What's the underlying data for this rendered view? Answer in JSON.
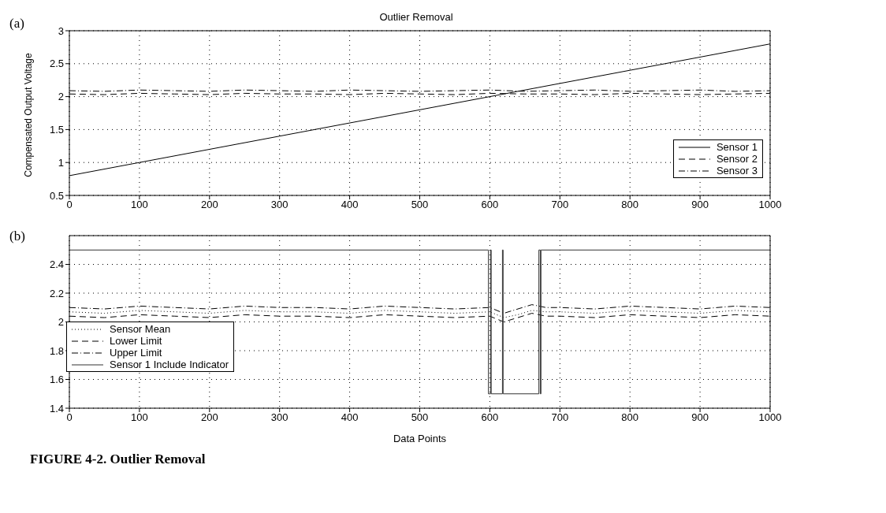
{
  "chart_data": [
    {
      "type": "line",
      "title": "Outlier Removal",
      "ylabel": "Compensated Output Voltage",
      "annotations": [
        "(a)"
      ],
      "xlim": [
        0,
        1000
      ],
      "xticks": [
        0,
        100,
        200,
        300,
        400,
        500,
        600,
        700,
        800,
        900,
        1000
      ],
      "ylim": [
        0.5,
        3
      ],
      "yticks": [
        0.5,
        1,
        1.5,
        2,
        2.5,
        3
      ],
      "grid": true,
      "legend": "bottom right",
      "series": [
        {
          "name": "Sensor 1",
          "color": "#000000",
          "line_style": "solid",
          "x": [
            0,
            1000
          ],
          "values": [
            0.8,
            2.8
          ]
        },
        {
          "name": "Sensor 2",
          "color": "#000000",
          "line_style": "dashed",
          "x": [
            0,
            50,
            100,
            150,
            200,
            250,
            300,
            350,
            400,
            450,
            500,
            550,
            600,
            650,
            700,
            750,
            800,
            850,
            900,
            950,
            1000
          ],
          "values": [
            2.04,
            2.03,
            2.05,
            2.04,
            2.03,
            2.05,
            2.04,
            2.04,
            2.03,
            2.05,
            2.04,
            2.03,
            2.05,
            2.04,
            2.04,
            2.03,
            2.05,
            2.04,
            2.03,
            2.04,
            2.05
          ]
        },
        {
          "name": "Sensor 3",
          "color": "#000000",
          "line_style": "dashdot",
          "x": [
            0,
            50,
            100,
            150,
            200,
            250,
            300,
            350,
            400,
            450,
            500,
            550,
            600,
            650,
            700,
            750,
            800,
            850,
            900,
            950,
            1000
          ],
          "values": [
            2.09,
            2.08,
            2.1,
            2.09,
            2.08,
            2.1,
            2.09,
            2.08,
            2.1,
            2.09,
            2.08,
            2.09,
            2.1,
            2.08,
            2.09,
            2.1,
            2.08,
            2.09,
            2.1,
            2.08,
            2.09
          ]
        }
      ]
    },
    {
      "type": "line",
      "xlabel": "Data Points",
      "annotations": [
        "(b)",
        "FIGURE 4-2. Outlier Removal"
      ],
      "xlim": [
        0,
        1000
      ],
      "xticks": [
        0,
        100,
        200,
        300,
        400,
        500,
        600,
        700,
        800,
        900,
        1000
      ],
      "ylim": [
        1.4,
        2.6
      ],
      "yticks": [
        1.4,
        1.6,
        1.8,
        2,
        2.2,
        2.4
      ],
      "grid": true,
      "legend": "left",
      "series": [
        {
          "name": "Sensor Mean",
          "color": "#000000",
          "line_style": "dotted",
          "x": [
            0,
            50,
            100,
            150,
            200,
            250,
            300,
            350,
            400,
            450,
            500,
            550,
            600,
            620,
            640,
            660,
            680,
            700,
            750,
            800,
            850,
            900,
            950,
            1000
          ],
          "values": [
            2.07,
            2.06,
            2.08,
            2.07,
            2.06,
            2.08,
            2.07,
            2.07,
            2.06,
            2.08,
            2.07,
            2.06,
            2.07,
            2.03,
            2.05,
            2.08,
            2.07,
            2.07,
            2.06,
            2.08,
            2.07,
            2.06,
            2.08,
            2.07
          ]
        },
        {
          "name": "Lower Limit",
          "color": "#000000",
          "line_style": "dashed",
          "x": [
            0,
            50,
            100,
            150,
            200,
            250,
            300,
            350,
            400,
            450,
            500,
            550,
            600,
            620,
            640,
            660,
            680,
            700,
            750,
            800,
            850,
            900,
            950,
            1000
          ],
          "values": [
            2.04,
            2.03,
            2.05,
            2.04,
            2.03,
            2.05,
            2.04,
            2.04,
            2.03,
            2.05,
            2.04,
            2.03,
            2.04,
            2.0,
            2.03,
            2.06,
            2.04,
            2.04,
            2.03,
            2.05,
            2.04,
            2.03,
            2.05,
            2.04
          ]
        },
        {
          "name": "Upper Limit",
          "color": "#000000",
          "line_style": "dashdot",
          "x": [
            0,
            50,
            100,
            150,
            200,
            250,
            300,
            350,
            400,
            450,
            500,
            550,
            600,
            620,
            640,
            660,
            680,
            700,
            750,
            800,
            850,
            900,
            950,
            1000
          ],
          "values": [
            2.1,
            2.09,
            2.11,
            2.1,
            2.09,
            2.11,
            2.1,
            2.1,
            2.09,
            2.11,
            2.1,
            2.09,
            2.1,
            2.06,
            2.09,
            2.12,
            2.1,
            2.1,
            2.09,
            2.11,
            2.1,
            2.09,
            2.11,
            2.1
          ]
        },
        {
          "name": "Sensor 1 Include Indicator",
          "color": "#333333",
          "line_style": "solid",
          "x": [
            0,
            598,
            598,
            601,
            601,
            602,
            602,
            618,
            618,
            619,
            619,
            670,
            670,
            672,
            672,
            673,
            673,
            1000
          ],
          "values": [
            2.5,
            2.5,
            1.5,
            1.5,
            2.5,
            2.5,
            1.5,
            1.5,
            2.5,
            2.5,
            1.5,
            1.5,
            2.5,
            2.5,
            1.5,
            1.5,
            2.5,
            2.5
          ]
        }
      ]
    }
  ]
}
